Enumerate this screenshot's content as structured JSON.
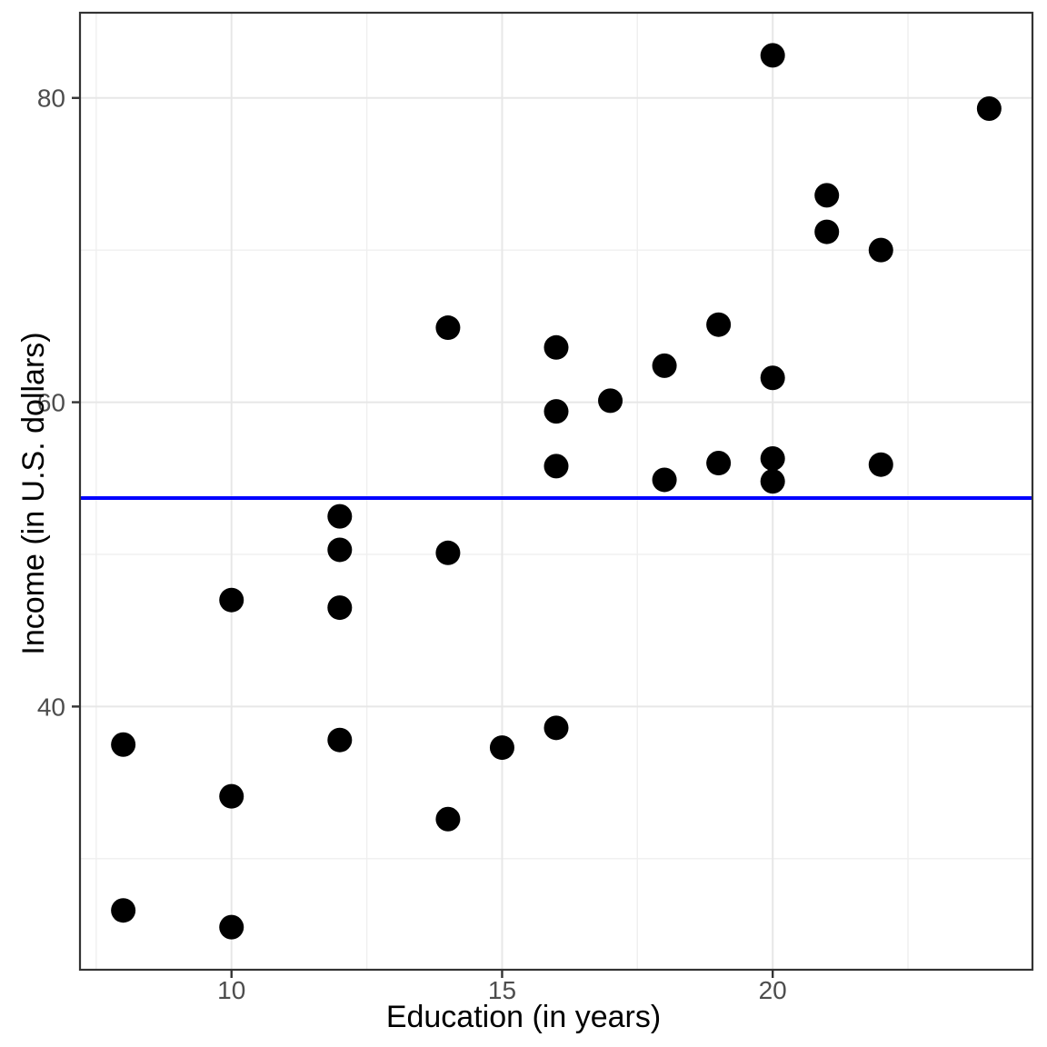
{
  "figure": {
    "background_color": "#ffffff"
  },
  "chart_data": {
    "type": "scatter",
    "title": "",
    "xlabel": "Education (in years)",
    "ylabel": "Income (in U.S. dollars)",
    "xlim": [
      7.2,
      24.8
    ],
    "ylim": [
      22.7,
      85.6
    ],
    "x_ticks": [
      10,
      15,
      20
    ],
    "y_ticks": [
      40,
      60,
      80
    ],
    "x_minor_ticks": [
      7.5,
      12.5,
      17.5,
      22.5
    ],
    "y_minor_ticks": [
      30,
      50,
      70
    ],
    "grid": "on",
    "legend": "none",
    "points": [
      {
        "x": 8,
        "y": 37.5
      },
      {
        "x": 8,
        "y": 26.6
      },
      {
        "x": 10,
        "y": 47.0
      },
      {
        "x": 10,
        "y": 34.1
      },
      {
        "x": 10,
        "y": 25.5
      },
      {
        "x": 12,
        "y": 52.5
      },
      {
        "x": 12,
        "y": 50.3
      },
      {
        "x": 12,
        "y": 46.5
      },
      {
        "x": 12,
        "y": 37.8
      },
      {
        "x": 14,
        "y": 64.9
      },
      {
        "x": 14,
        "y": 50.1
      },
      {
        "x": 14,
        "y": 32.6
      },
      {
        "x": 15,
        "y": 37.3
      },
      {
        "x": 16,
        "y": 63.6
      },
      {
        "x": 16,
        "y": 59.4
      },
      {
        "x": 16,
        "y": 55.8
      },
      {
        "x": 16,
        "y": 38.6
      },
      {
        "x": 17,
        "y": 60.1
      },
      {
        "x": 18,
        "y": 62.4
      },
      {
        "x": 18,
        "y": 54.9
      },
      {
        "x": 19,
        "y": 65.1
      },
      {
        "x": 19,
        "y": 56.0
      },
      {
        "x": 20,
        "y": 82.8
      },
      {
        "x": 20,
        "y": 61.6
      },
      {
        "x": 20,
        "y": 56.3
      },
      {
        "x": 20,
        "y": 54.8
      },
      {
        "x": 21,
        "y": 73.6
      },
      {
        "x": 21,
        "y": 71.2
      },
      {
        "x": 22,
        "y": 70.0
      },
      {
        "x": 22,
        "y": 55.9
      },
      {
        "x": 24,
        "y": 79.3
      }
    ],
    "hline": {
      "y": 53.7,
      "color": "#0000ff"
    }
  },
  "style": {
    "point_color": "#000000",
    "point_radius": 13.5,
    "grid_major_color": "#e7e7e7",
    "grid_minor_color": "#efefef",
    "panel_border_color": "#333333",
    "tick_mark_color": "#333333",
    "tick_label_color": "#4d4d4d",
    "axis_title_color": "#000000",
    "hline_width": 4,
    "tick_label_size": 28
  }
}
